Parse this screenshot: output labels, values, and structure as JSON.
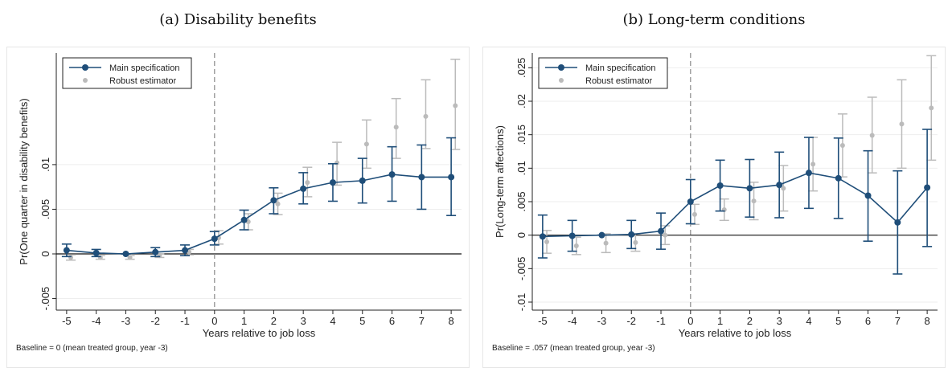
{
  "chart_data": [
    {
      "type": "line",
      "title": "(a) Disability benefits",
      "xlabel": "Years relative to job loss",
      "ylabel": "Pr(One quarter in disability benefits)",
      "note": "Baseline = 0   (mean treated group, year -3)",
      "x": [
        -5,
        -4,
        -3,
        -2,
        -1,
        0,
        1,
        2,
        3,
        4,
        5,
        6,
        7,
        8
      ],
      "xlim": [
        -5.35,
        8.35
      ],
      "ylim": [
        -0.0063,
        0.0225
      ],
      "yticks": [
        -0.005,
        0,
        0.005,
        0.01
      ],
      "ytick_labels": [
        "-.005",
        "0",
        ".005",
        ".01"
      ],
      "legend_position": "top-left",
      "reference_lines": {
        "vertical_x": 0,
        "horizontal_y": 0
      },
      "series": [
        {
          "name": "Main specification",
          "color": "#1f4e79",
          "values": [
            0.0004,
            0.0001,
            0.0,
            0.0002,
            0.0004,
            0.0017,
            0.0038,
            0.006,
            0.0073,
            0.008,
            0.0082,
            0.0089,
            0.0086,
            0.0086
          ],
          "ci_low": [
            -0.0003,
            -0.0003,
            0.0,
            -0.0003,
            -0.0002,
            0.001,
            0.0027,
            0.0045,
            0.0056,
            0.0059,
            0.0057,
            0.0059,
            0.005,
            0.0043
          ],
          "ci_high": [
            0.0011,
            0.0005,
            0.0,
            0.0007,
            0.001,
            0.0025,
            0.0049,
            0.0074,
            0.0091,
            0.0101,
            0.0107,
            0.012,
            0.0122,
            0.013
          ]
        },
        {
          "name": "Robust estimator",
          "color": "#bbbbbb",
          "values": [
            -0.0004,
            -0.0004,
            -0.0004,
            -0.0002,
            0.0002,
            0.0018,
            0.0036,
            0.0056,
            0.008,
            0.0102,
            0.0123,
            0.0142,
            0.0154,
            0.0166
          ],
          "ci_low": [
            -0.0007,
            -0.0006,
            -0.0006,
            -0.0004,
            -0.0001,
            0.0011,
            0.0027,
            0.0044,
            0.0064,
            0.0077,
            0.0096,
            0.0107,
            0.0118,
            0.0117
          ],
          "ci_high": [
            -0.0001,
            -0.0002,
            -0.0002,
            0.0,
            0.0005,
            0.0026,
            0.0045,
            0.0068,
            0.0097,
            0.0125,
            0.015,
            0.0174,
            0.0195,
            0.0218
          ]
        }
      ]
    },
    {
      "type": "line",
      "title": "(b) Long-term conditions",
      "xlabel": "Years relative to job loss",
      "ylabel": "Pr(Long-term affections)",
      "note": "Baseline = .057   (mean treated group, year -3)",
      "x": [
        -5,
        -4,
        -3,
        -2,
        -1,
        0,
        1,
        2,
        3,
        4,
        5,
        6,
        7,
        8
      ],
      "xlim": [
        -5.35,
        8.35
      ],
      "ylim": [
        -0.0112,
        0.0272
      ],
      "yticks": [
        -0.01,
        -0.005,
        0,
        0.005,
        0.01,
        0.015,
        0.02,
        0.025
      ],
      "ytick_labels": [
        "-.01",
        "-.005",
        "0",
        ".005",
        ".01",
        ".015",
        ".02",
        ".025"
      ],
      "legend_position": "top-left",
      "reference_lines": {
        "vertical_x": 0,
        "horizontal_y": 0
      },
      "series": [
        {
          "name": "Main specification",
          "color": "#1f4e79",
          "values": [
            -0.0002,
            -0.0001,
            0.0,
            0.0001,
            0.0006,
            0.005,
            0.0074,
            0.007,
            0.0075,
            0.0093,
            0.0085,
            0.0059,
            0.0019,
            0.0071
          ],
          "ci_low": [
            -0.0034,
            -0.0024,
            0.0,
            -0.002,
            -0.0021,
            0.0017,
            0.0036,
            0.0027,
            0.0026,
            0.004,
            0.0025,
            -0.0009,
            -0.0058,
            -0.0017
          ],
          "ci_high": [
            0.003,
            0.0022,
            0.0,
            0.0022,
            0.0033,
            0.0083,
            0.0112,
            0.0113,
            0.0124,
            0.0146,
            0.0145,
            0.0126,
            0.0096,
            0.0158
          ]
        },
        {
          "name": "Robust estimator",
          "color": "#bbbbbb",
          "values": [
            -0.001,
            -0.0016,
            -0.0012,
            -0.0011,
            0.0,
            0.0031,
            0.0038,
            0.0051,
            0.007,
            0.0106,
            0.0134,
            0.0149,
            0.0166,
            0.019
          ],
          "ci_low": [
            -0.0027,
            -0.0029,
            -0.0026,
            -0.0024,
            -0.0014,
            0.0016,
            0.0022,
            0.0023,
            0.0036,
            0.0066,
            0.0087,
            0.0093,
            0.01,
            0.0112
          ],
          "ci_high": [
            0.0007,
            -0.0003,
            0.0002,
            0.0002,
            0.0014,
            0.0046,
            0.0054,
            0.0079,
            0.0104,
            0.0146,
            0.0181,
            0.0206,
            0.0232,
            0.0268
          ]
        }
      ]
    }
  ]
}
